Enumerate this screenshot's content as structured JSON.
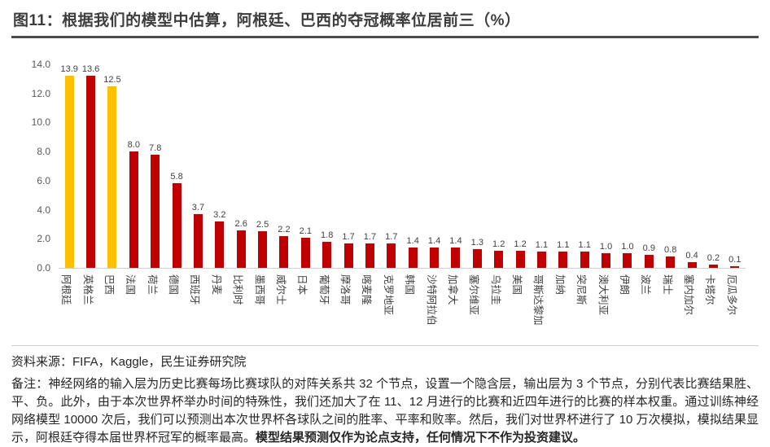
{
  "title": "图11：根据我们的模型中估算，阿根廷、巴西的夺冠概率位居前三（%）",
  "chart_data": {
    "type": "bar",
    "title": "根据我们的模型中估算，阿根廷、巴西的夺冠概率位居前三（%）",
    "categories": [
      "阿根廷",
      "英格兰",
      "巴西",
      "法国",
      "荷兰",
      "德国",
      "西班牙",
      "丹麦",
      "比利时",
      "墨西哥",
      "威尔士",
      "日本",
      "葡萄牙",
      "摩洛哥",
      "喀麦隆",
      "克罗地亚",
      "韩国",
      "沙特阿拉伯",
      "加拿大",
      "塞尔维亚",
      "乌拉圭",
      "美国",
      "哥斯达黎加",
      "加纳",
      "突尼斯",
      "澳大利亚",
      "伊朗",
      "波兰",
      "瑞士",
      "塞内加尔",
      "卡塔尔",
      "厄瓜多尔"
    ],
    "values": [
      13.9,
      13.6,
      12.5,
      8.0,
      7.8,
      5.8,
      3.7,
      3.2,
      2.6,
      2.5,
      2.2,
      2.1,
      1.8,
      1.7,
      1.7,
      1.7,
      1.4,
      1.4,
      1.4,
      1.3,
      1.2,
      1.2,
      1.1,
      1.1,
      1.1,
      1.0,
      1.0,
      0.9,
      0.8,
      0.4,
      0.2,
      0.1
    ],
    "xlabel": "",
    "ylabel": "",
    "ylim": [
      0,
      14
    ],
    "yticks": [
      "0.0",
      "2.0",
      "4.0",
      "6.0",
      "8.0",
      "10.0",
      "12.0",
      "14.0"
    ],
    "grid": false,
    "legend": "none",
    "value_labels": true,
    "bar_color": "#C00000",
    "highlight_color": "#FFC000",
    "highlight_indices": [
      0,
      2
    ]
  },
  "footer": {
    "source": "资料来源：FIFA，Kaggle，民生证券研究院",
    "note_label": "备注：",
    "note_text": "神经网络的输入层为历史比赛每场比赛球队的对阵关系共 32 个节点，设置一个隐含层，输出层为 3 个节点，分别代表比赛结果胜、平、负。此外，由于本次世界杯举办时间的特殊性，我们还加大了在 11、12 月进行的比赛和近四年进行的比赛的样本权重。通过训练神经网络模型 10000 次后，我们可以预测出本次世界杯各球队之间的胜率、平率和败率。然后，我们对世界杯进行了 10 万次模拟，模拟结果显示，阿根廷夺得本届世界杯冠军的概率最高。",
    "note_bold": "模型结果预测仅作为论点支持，任何情况下不作为投资建议。"
  }
}
